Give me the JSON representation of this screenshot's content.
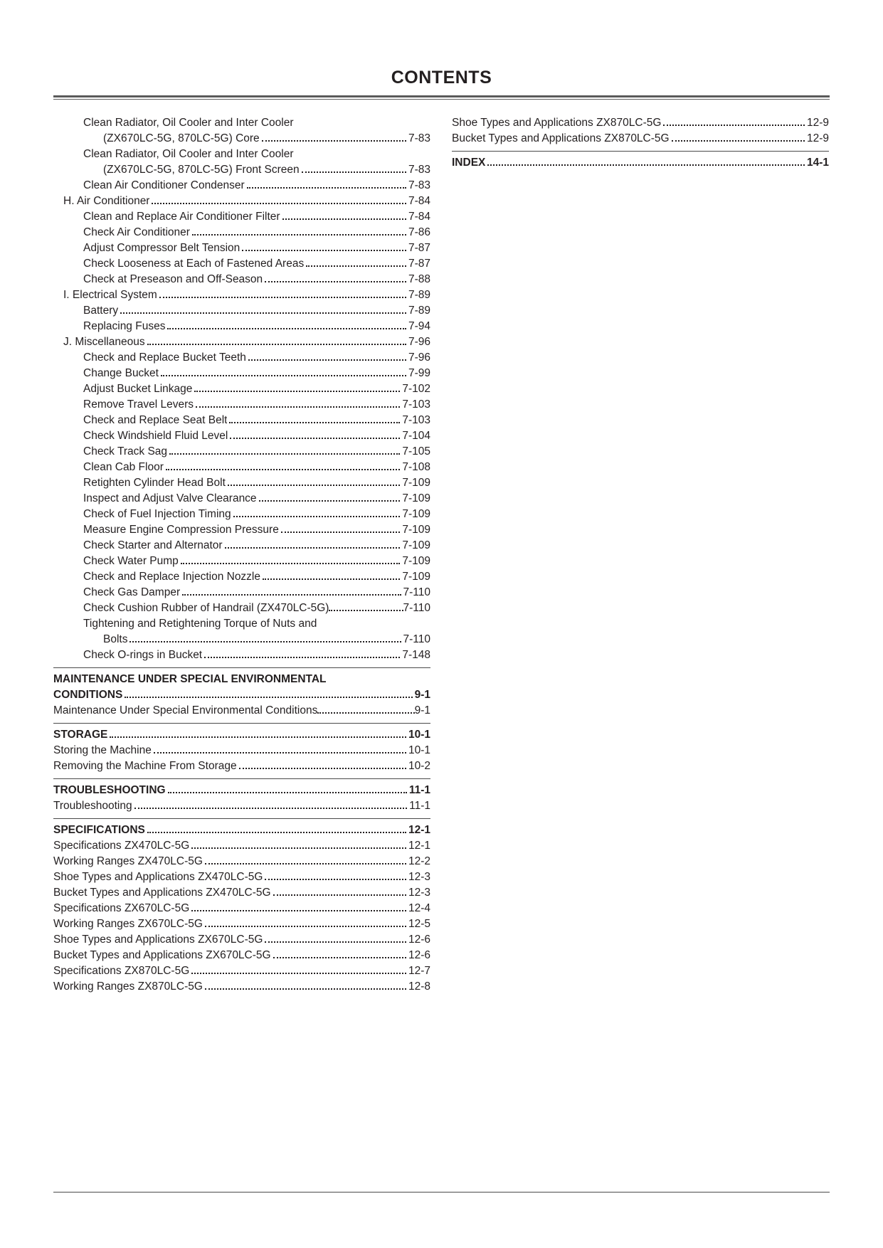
{
  "title": "CONTENTS",
  "left": [
    {
      "ind": 2,
      "label": "Clean Radiator, Oil Cooler and Inter Cooler",
      "wrap": true,
      "cont": {
        "ind": 3,
        "label": "(ZX670LC-5G, 870LC-5G) Core",
        "page": "7-83"
      }
    },
    {
      "ind": 2,
      "label": "Clean Radiator, Oil Cooler and Inter Cooler",
      "wrap": true,
      "cont": {
        "ind": 3,
        "label": "(ZX670LC-5G, 870LC-5G) Front Screen",
        "page": "7-83"
      }
    },
    {
      "ind": 2,
      "label": "Clean Air Conditioner Condenser",
      "page": "7-83"
    },
    {
      "ind": 1,
      "label": "H. Air Conditioner",
      "page": "7-84"
    },
    {
      "ind": 2,
      "label": "Clean and Replace Air Conditioner Filter",
      "page": "7-84"
    },
    {
      "ind": 2,
      "label": "Check Air Conditioner",
      "page": "7-86"
    },
    {
      "ind": 2,
      "label": "Adjust Compressor Belt Tension",
      "page": "7-87"
    },
    {
      "ind": 2,
      "label": "Check Looseness at Each of Fastened Areas",
      "page": "7-87"
    },
    {
      "ind": 2,
      "label": "Check at Preseason and Off-Season",
      "page": "7-88"
    },
    {
      "ind": 1,
      "label": "I. Electrical System",
      "page": "7-89"
    },
    {
      "ind": 2,
      "label": "Battery",
      "page": "7-89"
    },
    {
      "ind": 2,
      "label": "Replacing Fuses",
      "page": "7-94"
    },
    {
      "ind": 1,
      "label": "J. Miscellaneous",
      "page": "7-96"
    },
    {
      "ind": 2,
      "label": "Check and Replace Bucket Teeth",
      "page": "7-96"
    },
    {
      "ind": 2,
      "label": "Change Bucket",
      "page": "7-99"
    },
    {
      "ind": 2,
      "label": "Adjust Bucket Linkage",
      "page": "7-102"
    },
    {
      "ind": 2,
      "label": "Remove Travel Levers",
      "page": "7-103"
    },
    {
      "ind": 2,
      "label": "Check and Replace Seat Belt",
      "page": "7-103"
    },
    {
      "ind": 2,
      "label": "Check Windshield Fluid Level",
      "page": "7-104"
    },
    {
      "ind": 2,
      "label": "Check Track Sag",
      "page": "7-105"
    },
    {
      "ind": 2,
      "label": "Clean Cab Floor",
      "page": "7-108"
    },
    {
      "ind": 2,
      "label": "Retighten Cylinder Head Bolt",
      "page": "7-109"
    },
    {
      "ind": 2,
      "label": "Inspect and Adjust Valve Clearance",
      "page": "7-109"
    },
    {
      "ind": 2,
      "label": "Check of Fuel Injection Timing",
      "page": "7-109"
    },
    {
      "ind": 2,
      "label": "Measure Engine Compression Pressure",
      "page": "7-109"
    },
    {
      "ind": 2,
      "label": "Check Starter and Alternator",
      "page": "7-109"
    },
    {
      "ind": 2,
      "label": "Check Water Pump",
      "page": "7-109"
    },
    {
      "ind": 2,
      "label": "Check and Replace Injection Nozzle",
      "page": "7-109"
    },
    {
      "ind": 2,
      "label": "Check Gas Damper",
      "page": "7-110"
    },
    {
      "ind": 2,
      "label": "Check Cushion Rubber of Handrail (ZX470LC-5G)",
      "page": "7-110",
      "tight": true
    },
    {
      "ind": 2,
      "label": "Tightening and Retightening Torque of Nuts and",
      "wrap": true,
      "cont": {
        "ind": 3,
        "label": "Bolts",
        "page": "7-110"
      }
    },
    {
      "ind": 2,
      "label": "Check O-rings in Bucket",
      "page": "7-148"
    },
    {
      "rule": true
    },
    {
      "ind": 0,
      "bold": true,
      "label": "MAINTENANCE UNDER SPECIAL ENVIRONMENTAL",
      "wrap": true,
      "cont": {
        "ind": 0,
        "bold": true,
        "label": "CONDITIONS",
        "page": "9-1"
      }
    },
    {
      "ind": 0,
      "label": "Maintenance Under Special Environmental Conditions",
      "page": "9-1",
      "tight": true
    },
    {
      "rule": true
    },
    {
      "ind": 0,
      "bold": true,
      "label": "STORAGE",
      "page": "10-1"
    },
    {
      "ind": 0,
      "label": "Storing the Machine",
      "page": "10-1"
    },
    {
      "ind": 0,
      "label": "Removing the Machine From Storage",
      "page": "10-2"
    },
    {
      "rule": true
    },
    {
      "ind": 0,
      "bold": true,
      "label": "TROUBLESHOOTING",
      "page": "11-1"
    },
    {
      "ind": 0,
      "label": "Troubleshooting",
      "page": "11-1"
    },
    {
      "rule": true
    },
    {
      "ind": 0,
      "bold": true,
      "label": "SPECIFICATIONS",
      "page": "12-1"
    },
    {
      "ind": 0,
      "label": "Specifications ZX470LC-5G",
      "page": "12-1"
    },
    {
      "ind": 0,
      "label": "Working Ranges ZX470LC-5G",
      "page": "12-2"
    },
    {
      "ind": 0,
      "label": "Shoe Types and Applications ZX470LC-5G",
      "page": "12-3"
    },
    {
      "ind": 0,
      "label": "Bucket Types and Applications ZX470LC-5G",
      "page": "12-3"
    },
    {
      "ind": 0,
      "label": "Specifications ZX670LC-5G",
      "page": "12-4"
    },
    {
      "ind": 0,
      "label": "Working Ranges ZX670LC-5G",
      "page": "12-5"
    },
    {
      "ind": 0,
      "label": "Shoe Types and Applications ZX670LC-5G",
      "page": "12-6"
    },
    {
      "ind": 0,
      "label": "Bucket Types and Applications ZX670LC-5G",
      "page": "12-6"
    },
    {
      "ind": 0,
      "label": "Specifications ZX870LC-5G",
      "page": "12-7"
    },
    {
      "ind": 0,
      "label": "Working Ranges ZX870LC-5G",
      "page": "12-8"
    }
  ],
  "right": [
    {
      "ind": 0,
      "label": "Shoe Types and Applications ZX870LC-5G",
      "page": "12-9"
    },
    {
      "ind": 0,
      "label": "Bucket Types and Applications ZX870LC-5G",
      "page": "12-9"
    },
    {
      "rule": true
    },
    {
      "ind": 0,
      "bold": true,
      "label": "INDEX",
      "page": "14-1"
    }
  ]
}
